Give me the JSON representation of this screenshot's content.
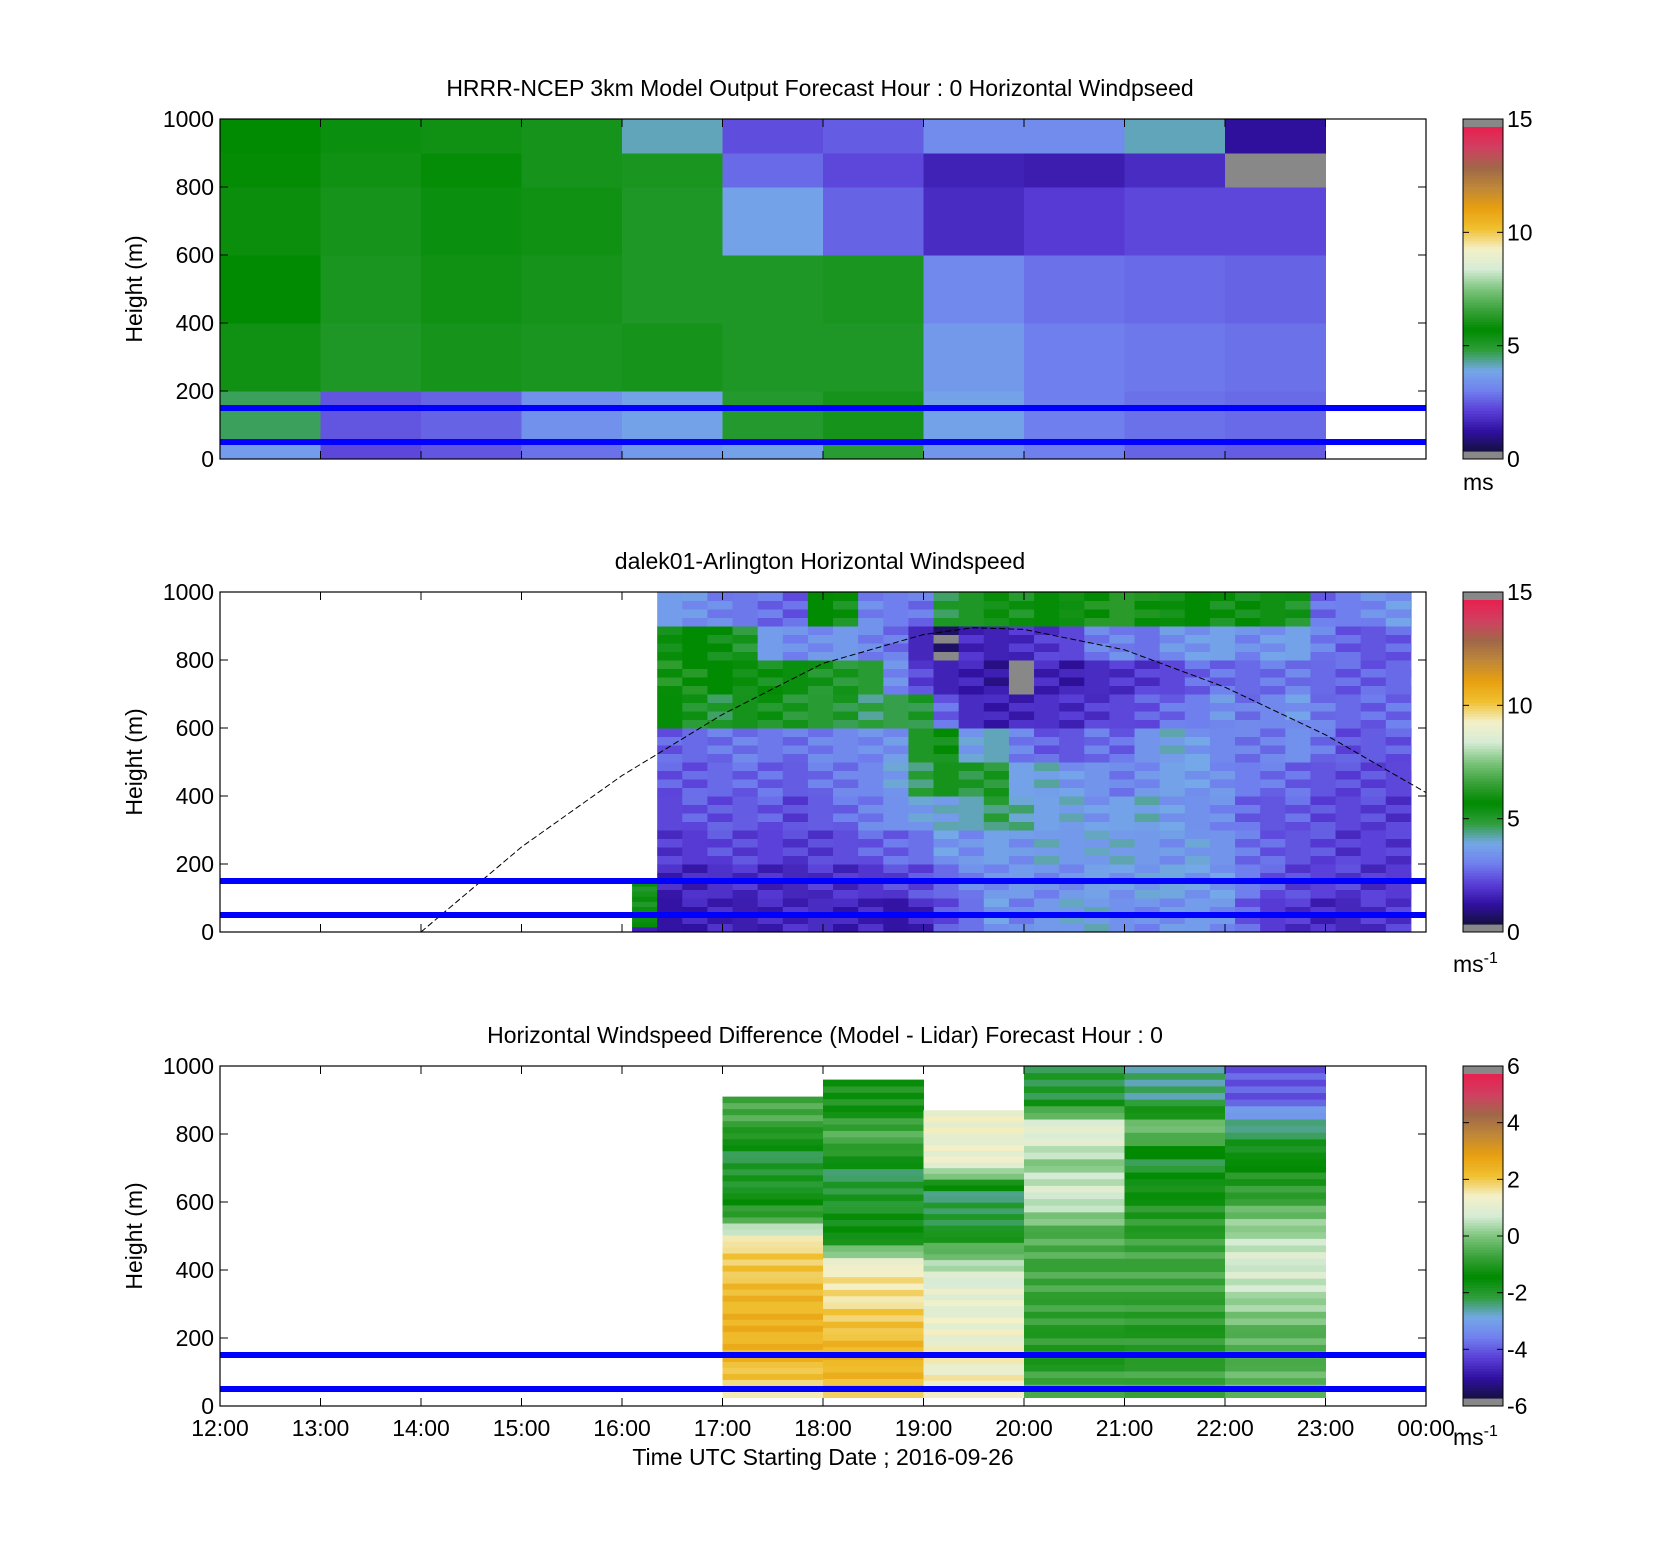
{
  "colors": {
    "background": "#ffffff",
    "reference_lines": "#0000ff",
    "diurnal_curve": "#000000",
    "no_data": "#ffffff"
  },
  "chart_data": [
    {
      "type": "heatmap",
      "title": "HRRR-NCEP 3km Model Output   Forecast Hour : 0 Horizontal Windpseed",
      "ylabel": "Height (m)",
      "xlabel": "",
      "ylim": [
        0,
        1000
      ],
      "yticks": [
        "0",
        "200",
        "400",
        "600",
        "800",
        "1000"
      ],
      "xlim_hours": [
        12,
        24
      ],
      "xticks": [],
      "grid": false,
      "colorbar": {
        "range": [
          0,
          15
        ],
        "ticks": [
          "0",
          "5",
          "10",
          "15"
        ],
        "unit_main": "ms",
        "unit_sup": "",
        "colors": [
          "#888888",
          "#141040",
          "#3010a0",
          "#5a3ed8",
          "#7080ee",
          "#74a8e8",
          "#2e9e3a",
          "#008a00",
          "#3aa23a",
          "#7cc47c",
          "#d6ecd6",
          "#f4f0c8",
          "#f0c030",
          "#e8a010",
          "#c08838",
          "#a06848",
          "#d04060",
          "#e82050",
          "#888888"
        ]
      },
      "reference_lines_m": [
        150,
        50
      ],
      "cells": {
        "x_edges_hours": [
          12,
          13,
          14,
          15,
          16,
          17,
          18,
          19,
          20,
          21,
          22,
          23
        ],
        "y_edges_m": [
          0,
          50,
          200,
          400,
          600,
          800,
          900,
          1000
        ],
        "values_mps": [
          [
            3.5,
            2.0,
            2.2,
            2.6,
            3.4,
            3.6,
            4.8,
            3.3,
            2.8,
            2.4,
            2.3
          ],
          [
            4.5,
            2.2,
            2.4,
            3.2,
            3.6,
            4.9,
            5.2,
            3.6,
            2.8,
            2.6,
            2.5
          ],
          [
            5.3,
            5.0,
            5.2,
            5.1,
            5.2,
            5.0,
            5.0,
            3.4,
            2.8,
            2.7,
            2.6
          ],
          [
            5.6,
            5.1,
            5.3,
            5.2,
            5.0,
            5.0,
            5.1,
            3.0,
            2.6,
            2.5,
            2.4
          ],
          [
            5.8,
            5.2,
            5.4,
            5.3,
            5.0,
            3.6,
            2.4,
            1.5,
            1.8,
            2.0,
            2.0
          ],
          [
            5.7,
            5.3,
            5.5,
            5.2,
            5.1,
            2.5,
            2.0,
            1.3,
            1.2,
            1.5,
            0.0
          ],
          [
            5.6,
            5.4,
            5.3,
            5.2,
            4.0,
            2.1,
            2.3,
            3.1,
            3.1,
            4.0,
            0.9
          ]
        ]
      }
    },
    {
      "type": "heatmap",
      "title": "dalek01-Arlington  Horizontal Windspeed",
      "ylabel": "Height (m)",
      "xlabel": "",
      "ylim": [
        0,
        1000
      ],
      "yticks": [
        "0",
        "200",
        "400",
        "600",
        "800",
        "1000"
      ],
      "xlim_hours": [
        12,
        24
      ],
      "xticks": [],
      "grid": false,
      "colorbar": {
        "range": [
          0,
          15
        ],
        "ticks": [
          "0",
          "5",
          "10",
          "15"
        ],
        "unit_main": "ms",
        "unit_sup": "-1",
        "colors": [
          "#888888",
          "#141040",
          "#3010a0",
          "#5a3ed8",
          "#7080ee",
          "#74a8e8",
          "#2e9e3a",
          "#008a00",
          "#3aa23a",
          "#7cc47c",
          "#d6ecd6",
          "#f4f0c8",
          "#f0c030",
          "#e8a010",
          "#c08838",
          "#a06848",
          "#d04060",
          "#e82050",
          "#888888"
        ]
      },
      "reference_lines_m": [
        150,
        50
      ],
      "sun_elevation_curve_m": {
        "hours": [
          14.0,
          15.0,
          16.0,
          17.0,
          18.0,
          19.0,
          19.5,
          20.0,
          21.0,
          22.0,
          23.0,
          24.0
        ],
        "heights": [
          0,
          250,
          460,
          640,
          790,
          875,
          895,
          890,
          830,
          720,
          580,
          410
        ]
      },
      "columns": [
        {
          "hour": 16.1,
          "profile": [
            1.0,
            5.5,
            5.6,
            5.5,
            5.4,
            5.2,
            5.2,
            5.2,
            5.2,
            5.2
          ]
        },
        {
          "hour": 16.35,
          "profile": [
            1.0,
            1.3,
            1.8,
            2.0,
            2.2,
            2.4,
            5.5,
            6.0,
            5.5,
            3.5
          ]
        },
        {
          "hour": 16.6,
          "profile": [
            1.2,
            1.4,
            1.8,
            2.2,
            2.3,
            2.5,
            5.0,
            6.0,
            5.6,
            3.2
          ]
        },
        {
          "hour": 16.85,
          "profile": [
            1.4,
            1.6,
            2.0,
            2.2,
            2.5,
            2.6,
            4.8,
            5.6,
            5.3,
            3.0
          ]
        },
        {
          "hour": 17.1,
          "profile": [
            1.2,
            1.5,
            2.0,
            2.3,
            2.4,
            2.8,
            5.2,
            5.4,
            5.0,
            2.7
          ]
        },
        {
          "hour": 17.35,
          "profile": [
            1.3,
            1.5,
            1.9,
            2.2,
            2.5,
            2.7,
            5.1,
            5.3,
            3.5,
            2.5
          ]
        },
        {
          "hour": 17.6,
          "profile": [
            1.5,
            1.4,
            1.8,
            2.0,
            2.3,
            2.6,
            5.0,
            5.4,
            3.0,
            2.4
          ]
        },
        {
          "hour": 17.85,
          "profile": [
            1.5,
            1.6,
            1.9,
            2.3,
            2.6,
            2.9,
            4.8,
            5.0,
            3.2,
            5.6
          ]
        },
        {
          "hour": 18.1,
          "profile": [
            1.2,
            1.6,
            2.1,
            2.5,
            2.8,
            3.0,
            4.8,
            5.0,
            3.4,
            5.2
          ]
        },
        {
          "hour": 18.35,
          "profile": [
            1.4,
            1.7,
            2.3,
            2.9,
            3.0,
            3.0,
            4.5,
            4.8,
            2.9,
            3.0
          ]
        },
        {
          "hour": 18.6,
          "profile": [
            1.0,
            1.9,
            2.5,
            3.2,
            3.5,
            3.3,
            4.6,
            3.0,
            2.7,
            2.8
          ]
        },
        {
          "hour": 18.85,
          "profile": [
            1.3,
            2.1,
            2.6,
            3.5,
            4.6,
            5.0,
            4.8,
            2.0,
            1.4,
            2.6
          ]
        },
        {
          "hour": 19.1,
          "profile": [
            2.2,
            2.5,
            3.4,
            3.8,
            5.2,
            5.3,
            2.5,
            1.3,
            0.0,
            4.8
          ]
        },
        {
          "hour": 19.35,
          "profile": [
            2.6,
            2.9,
            3.2,
            4.0,
            4.8,
            3.6,
            1.5,
            1.2,
            1.5,
            5.0
          ]
        },
        {
          "hour": 19.6,
          "profile": [
            3.4,
            3.2,
            3.6,
            4.5,
            5.0,
            4.0,
            1.2,
            1.0,
            1.3,
            5.4
          ]
        },
        {
          "hour": 19.85,
          "profile": [
            3.0,
            3.5,
            3.2,
            4.2,
            3.6,
            2.8,
            1.4,
            0.0,
            1.5,
            5.2
          ]
        },
        {
          "hour": 20.1,
          "profile": [
            3.4,
            3.0,
            3.8,
            3.6,
            3.8,
            2.4,
            1.6,
            1.3,
            1.8,
            5.5
          ]
        },
        {
          "hour": 20.35,
          "profile": [
            3.6,
            3.2,
            3.4,
            3.7,
            3.4,
            2.2,
            1.5,
            1.2,
            2.0,
            5.6
          ]
        },
        {
          "hour": 20.6,
          "profile": [
            3.8,
            3.6,
            3.6,
            3.4,
            3.3,
            2.6,
            1.8,
            1.5,
            2.8,
            6.0
          ]
        },
        {
          "hour": 20.85,
          "profile": [
            3.2,
            3.3,
            3.8,
            3.6,
            2.8,
            2.5,
            2.0,
            1.6,
            3.0,
            6.3
          ]
        },
        {
          "hour": 21.1,
          "profile": [
            3.0,
            3.6,
            3.4,
            3.8,
            3.2,
            3.3,
            2.2,
            1.8,
            2.6,
            5.8
          ]
        },
        {
          "hour": 21.35,
          "profile": [
            3.3,
            3.8,
            3.2,
            3.5,
            3.6,
            3.7,
            2.6,
            2.0,
            3.2,
            5.5
          ]
        },
        {
          "hour": 21.6,
          "profile": [
            3.5,
            3.4,
            3.6,
            3.2,
            3.4,
            3.5,
            2.8,
            2.4,
            3.4,
            5.6
          ]
        },
        {
          "hour": 21.85,
          "profile": [
            3.1,
            3.5,
            3.3,
            3.0,
            3.2,
            3.0,
            3.2,
            2.6,
            3.6,
            5.2
          ]
        },
        {
          "hour": 22.1,
          "profile": [
            2.4,
            2.8,
            2.6,
            2.5,
            2.8,
            2.7,
            2.8,
            2.5,
            3.0,
            5.4
          ]
        },
        {
          "hour": 22.35,
          "profile": [
            1.8,
            2.2,
            2.4,
            2.2,
            2.6,
            2.8,
            3.0,
            2.6,
            3.4,
            5.3
          ]
        },
        {
          "hour": 22.6,
          "profile": [
            1.6,
            2.0,
            2.2,
            2.3,
            2.5,
            3.2,
            3.3,
            2.8,
            3.6,
            5.0
          ]
        },
        {
          "hour": 22.85,
          "profile": [
            1.5,
            1.9,
            2.0,
            2.1,
            2.2,
            2.6,
            2.8,
            2.5,
            2.8,
            2.6
          ]
        },
        {
          "hour": 23.1,
          "profile": [
            1.4,
            1.8,
            1.8,
            2.0,
            2.0,
            2.2,
            2.5,
            2.3,
            2.4,
            2.8
          ]
        },
        {
          "hour": 23.35,
          "profile": [
            1.6,
            1.7,
            1.9,
            1.9,
            2.1,
            2.3,
            2.4,
            2.4,
            2.2,
            3.0
          ]
        },
        {
          "hour": 23.6,
          "profile": [
            1.8,
            1.8,
            1.7,
            1.8,
            2.0,
            2.2,
            2.6,
            2.5,
            2.3,
            3.4
          ]
        },
        {
          "hour": 23.85,
          "profile": [
            2.6,
            2.0,
            1.8,
            1.7,
            1.8,
            2.0,
            2.8,
            2.6,
            2.5,
            5.2
          ]
        }
      ]
    },
    {
      "type": "heatmap",
      "title": "Horizontal Windspeed Difference (Model - Lidar) Forecast Hour : 0",
      "ylabel": "Height (m)",
      "xlabel": "Time UTC  Starting Date ; 2016-09-26",
      "ylim": [
        0,
        1000
      ],
      "yticks": [
        "0",
        "200",
        "400",
        "600",
        "800",
        "1000"
      ],
      "xlim_hours": [
        12,
        24
      ],
      "xticks": [
        "12:00",
        "13:00",
        "14:00",
        "15:00",
        "16:00",
        "17:00",
        "18:00",
        "19:00",
        "20:00",
        "21:00",
        "22:00",
        "23:00",
        "00:00"
      ],
      "grid": false,
      "colorbar": {
        "range": [
          -6,
          6
        ],
        "ticks": [
          "-6",
          "-4",
          "-2",
          "0",
          "2",
          "4",
          "6"
        ],
        "unit_main": "ms",
        "unit_sup": "-1",
        "colors": [
          "#888888",
          "#141040",
          "#3010a0",
          "#5a3ed8",
          "#7080ee",
          "#74a8e8",
          "#2e9e3a",
          "#008a00",
          "#3aa23a",
          "#7cc47c",
          "#d6ecd6",
          "#f4f0c8",
          "#f0c030",
          "#e8a010",
          "#c08838",
          "#a06848",
          "#d04060",
          "#e82050",
          "#888888"
        ]
      },
      "reference_lines_m": [
        150,
        50
      ],
      "columns": [
        {
          "hour_start": 17,
          "hour_end": 18,
          "top_m": 910,
          "profile": [
            1.8,
            2.4,
            2.6,
            2.5,
            2.2,
            1.9,
            -0.8,
            -2.0,
            -2.2,
            -0.6
          ]
        },
        {
          "hour_start": 18,
          "hour_end": 19,
          "top_m": 960,
          "profile": [
            2.2,
            2.6,
            2.3,
            1.8,
            1.6,
            -1.6,
            -2.0,
            -2.3,
            -0.4,
            -1.2
          ]
        },
        {
          "hour_start": 19,
          "hour_end": 20,
          "top_m": 870,
          "profile": [
            1.6,
            1.4,
            1.3,
            1.2,
            1.0,
            -0.2,
            -2.2,
            -2.4,
            1.2,
            1.3
          ]
        },
        {
          "hour_start": 20,
          "hour_end": 21,
          "top_m": 1000,
          "profile": [
            -0.4,
            -1.0,
            -0.9,
            -0.7,
            -0.6,
            -0.4,
            0.9,
            0.2,
            1.3,
            -2.2
          ]
        },
        {
          "hour_start": 21,
          "hour_end": 22,
          "top_m": 1000,
          "profile": [
            -0.6,
            -0.8,
            -1.0,
            -0.7,
            -0.6,
            -0.9,
            -1.2,
            -2.2,
            0.1,
            -2.6
          ]
        },
        {
          "hour_start": 22,
          "hour_end": 23,
          "top_m": 1000,
          "profile": [
            -0.2,
            -0.4,
            -0.3,
            0.5,
            0.9,
            0.3,
            -0.8,
            -1.4,
            -2.4,
            -4.2
          ]
        }
      ]
    }
  ]
}
